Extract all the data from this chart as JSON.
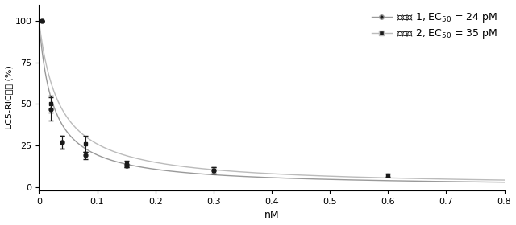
{
  "xlabel": "nM",
  "ylabel": "LC5-RIC感染 (%)",
  "xlim": [
    0,
    0.8
  ],
  "ylim": [
    -2,
    110
  ],
  "yticks": [
    0,
    25,
    50,
    75,
    100
  ],
  "xtick_vals": [
    0.0,
    0.1,
    0.2,
    0.3,
    0.4,
    0.5,
    0.6,
    0.7,
    0.8
  ],
  "xtick_labels": [
    "0",
    "0.1",
    "0.2",
    "0.3",
    "0.4",
    "0.5",
    "0.6",
    "0.7",
    "0.8"
  ],
  "donor1_x": [
    0.005,
    0.02,
    0.04,
    0.08,
    0.15,
    0.3
  ],
  "donor1_y": [
    100,
    47,
    27,
    19,
    13,
    10
  ],
  "donor1_yerr": [
    0,
    7,
    4,
    2,
    1,
    2
  ],
  "donor2_x": [
    0.005,
    0.02,
    0.04,
    0.08,
    0.15,
    0.3,
    0.6
  ],
  "donor2_y": [
    100,
    50,
    27,
    26,
    14,
    10,
    7
  ],
  "donor2_yerr": [
    0,
    5,
    4,
    5,
    2,
    2,
    1
  ],
  "ec50_1_nM": 0.024,
  "ec50_2_nM": 0.035,
  "label1": "ドナー 1, EC$_{50}$ = 24 pM",
  "label2": "ドナー 2, EC$_{50}$ = 35 pM",
  "marker1": "o",
  "marker2": "s",
  "color1": "#1a1a1a",
  "color2": "#1a1a1a",
  "curve_color1": "#999999",
  "curve_color2": "#bbbbbb",
  "bg_color": "#ffffff",
  "font_size": 9,
  "tick_font_size": 8
}
